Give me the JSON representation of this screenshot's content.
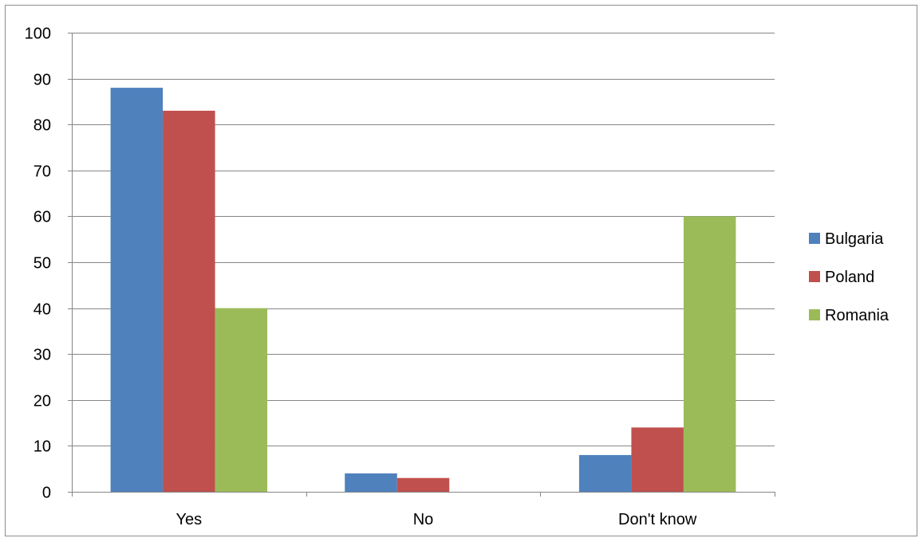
{
  "chart_data": {
    "type": "bar",
    "categories": [
      "Yes",
      "No",
      "Don't know"
    ],
    "series": [
      {
        "name": "Bulgaria",
        "color": "#4f81bd",
        "values": [
          88,
          4,
          8
        ]
      },
      {
        "name": "Poland",
        "color": "#c0504d",
        "values": [
          83,
          3,
          14
        ]
      },
      {
        "name": "Romania",
        "color": "#9bbb59",
        "values": [
          40,
          0,
          60
        ]
      }
    ],
    "ylim": [
      0,
      100
    ],
    "yticks": [
      "0",
      "10",
      "20",
      "30",
      "40",
      "50",
      "60",
      "70",
      "80",
      "90",
      "100"
    ],
    "grid": true,
    "legend_position": "right",
    "title": "",
    "xlabel": "",
    "ylabel": ""
  }
}
